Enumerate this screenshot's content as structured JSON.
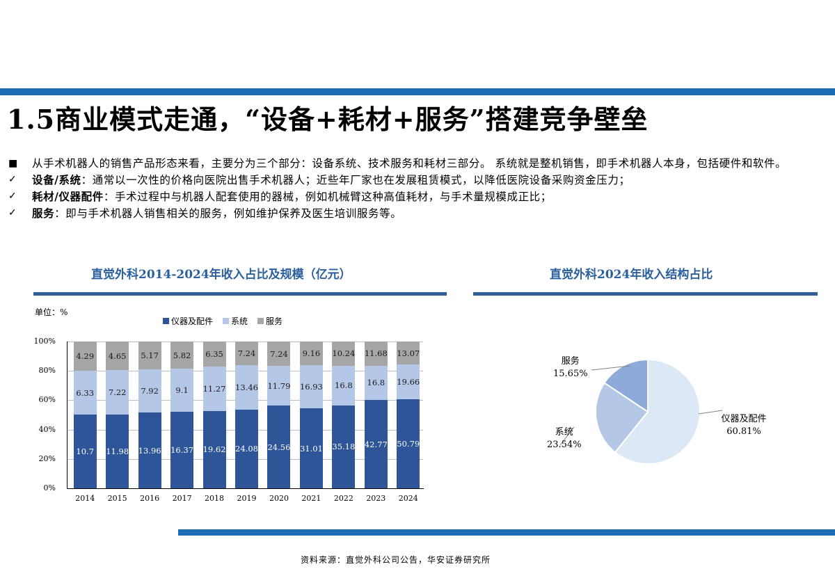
{
  "page": {
    "title": "1.5商业模式走通，“设备+耗材+服务”搭建竞争壁垒",
    "bullets": [
      {
        "mark": "■",
        "bold": "",
        "text": "从手术机器人的销售产品形态来看，主要分为三个部分：设备系统、技术服务和耗材三部分。 系统就是整机销售，即手术机器人本身，包括硬件和软件。"
      },
      {
        "mark": "✓",
        "bold": "设备/系统",
        "text": "：通常以一次性的价格向医院出售手术机器人；近些年厂家也在发展租赁模式，以降低医院设备采购资金压力；"
      },
      {
        "mark": "✓",
        "bold": "耗材/仪器配件",
        "text": "：手术过程中与机器人配套使用的器械，例如机械臂这种高值耗材，与手术量规模成正比；"
      },
      {
        "mark": "✓",
        "bold": "服务",
        "text": "：即与手术机器人销售相关的服务，例如维护保养及医生培训服务等。"
      }
    ],
    "source": "资料来源：直觉外科公司公告，华安证券研究所"
  },
  "colors": {
    "accent_rule": "#1a6db3",
    "chart_title": "#2a5f9e",
    "instruments": "#2d5597",
    "systems": "#b4c7e7",
    "services": "#a6a6a6",
    "pie_instruments": "#dde8f6",
    "pie_systems": "#b4c7e7",
    "pie_services": "#8eaadb"
  },
  "chart_data": [
    {
      "type": "bar",
      "stacked": "percent",
      "title": "直觉外科2014-2024年收入占比及规模（亿元）",
      "unit_label": "单位：%",
      "xlabel": "",
      "ylabel": "",
      "ylim": [
        0,
        100
      ],
      "yticks": [
        "0%",
        "20%",
        "40%",
        "60%",
        "80%",
        "100%"
      ],
      "grid": true,
      "legend_position": "top",
      "categories": [
        "2014",
        "2015",
        "2016",
        "2017",
        "2018",
        "2019",
        "2020",
        "2021",
        "2022",
        "2023",
        "2024"
      ],
      "series": [
        {
          "name": "仪器及配件",
          "values": [
            10.7,
            11.98,
            13.96,
            16.37,
            19.62,
            24.08,
            24.56,
            31.01,
            35.18,
            42.77,
            50.79
          ]
        },
        {
          "name": "系统",
          "values": [
            6.33,
            7.22,
            7.92,
            9.1,
            11.27,
            13.46,
            11.79,
            16.93,
            16.8,
            16.8,
            19.66
          ]
        },
        {
          "name": "服务",
          "values": [
            4.29,
            4.65,
            5.17,
            5.82,
            6.35,
            7.24,
            7.24,
            9.16,
            10.24,
            11.68,
            13.07
          ]
        }
      ]
    },
    {
      "type": "pie",
      "title": "直觉外科2024年收入结构占比",
      "slices": [
        {
          "label": "仪器及配件",
          "value": 60.81,
          "display": "60.81%"
        },
        {
          "label": "系统",
          "value": 23.54,
          "display": "23.54%"
        },
        {
          "label": "服务",
          "value": 15.65,
          "display": "15.65%"
        }
      ]
    }
  ]
}
